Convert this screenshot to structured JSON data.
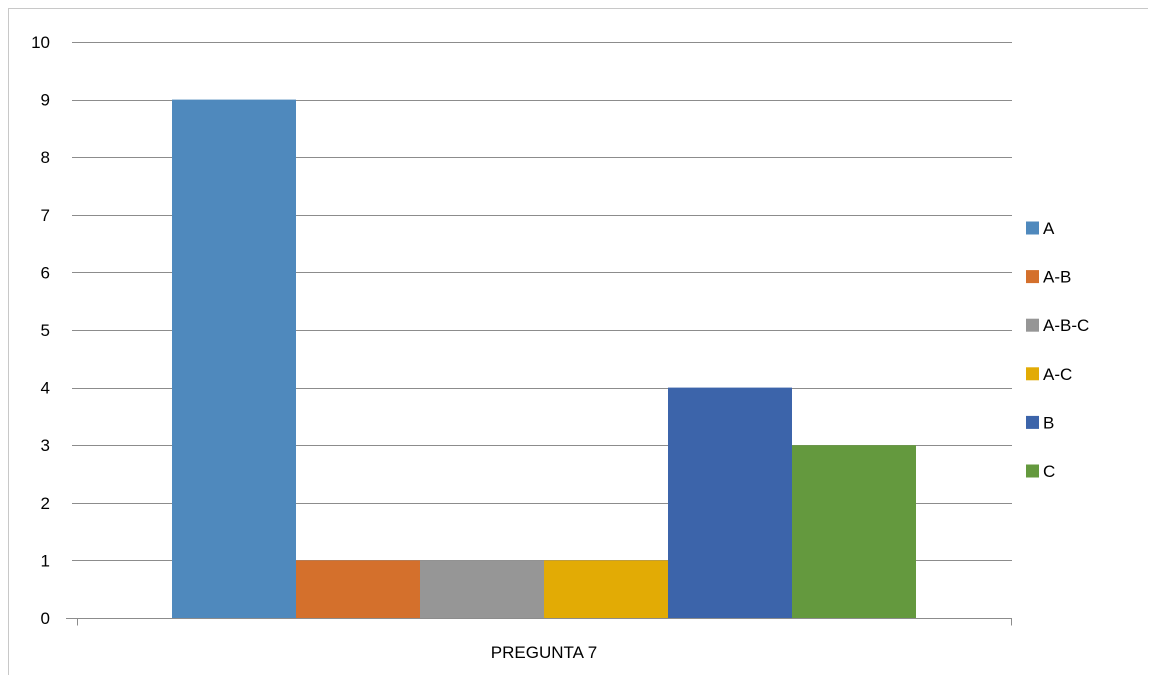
{
  "chart_data": {
    "type": "bar",
    "title": "",
    "xlabel": "",
    "ylabel": "",
    "categories": [
      "PREGUNTA 7"
    ],
    "series": [
      {
        "name": "A",
        "values": [
          9
        ],
        "color": "#4f89bd"
      },
      {
        "name": "A-B",
        "values": [
          1
        ],
        "color": "#d4702c"
      },
      {
        "name": "A-B-C",
        "values": [
          1
        ],
        "color": "#969696"
      },
      {
        "name": "A-C",
        "values": [
          1
        ],
        "color": "#e2ab05"
      },
      {
        "name": "B",
        "values": [
          4
        ],
        "color": "#3c64aa"
      },
      {
        "name": "C",
        "values": [
          3
        ],
        "color": "#64993e"
      }
    ],
    "ylim": [
      0,
      10
    ],
    "yticks": [
      "0",
      "1",
      "2",
      "3",
      "4",
      "5",
      "6",
      "7",
      "8",
      "9",
      "10"
    ],
    "grid": true,
    "gridline_color": "#8c8c8c",
    "legend": "right"
  }
}
